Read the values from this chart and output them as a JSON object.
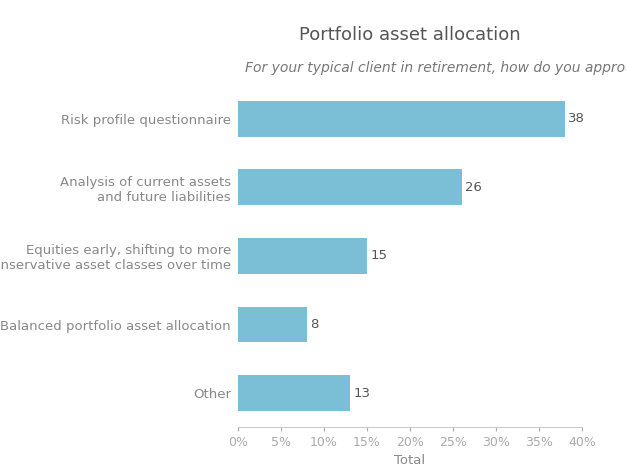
{
  "title": "Portfolio asset allocation",
  "subtitle": "For your typical client in retirement, how do you approach portfolio asset allocation?",
  "categories": [
    "Other",
    "Balanced portfolio asset allocation",
    "Equities early, shifting to more\nconservative asset classes over time",
    "Analysis of current assets\nand future liabilities",
    "Risk profile questionnaire"
  ],
  "values": [
    13,
    8,
    15,
    26,
    38
  ],
  "bar_color": "#7bbfd6",
  "xlabel": "Total",
  "xlim": [
    0,
    40
  ],
  "xticks": [
    0,
    5,
    10,
    15,
    20,
    25,
    30,
    35,
    40
  ],
  "xtick_labels": [
    "0%",
    "5%",
    "10%",
    "15%",
    "20%",
    "25%",
    "30%",
    "35%",
    "40%"
  ],
  "title_fontsize": 13,
  "subtitle_fontsize": 10,
  "label_fontsize": 9.5,
  "value_fontsize": 9.5,
  "tick_fontsize": 9,
  "header_bg_color": "#e8e8e8",
  "plot_bg_color": "#ffffff",
  "text_color": "#888888",
  "value_color": "#555555",
  "bar_height": 0.52
}
